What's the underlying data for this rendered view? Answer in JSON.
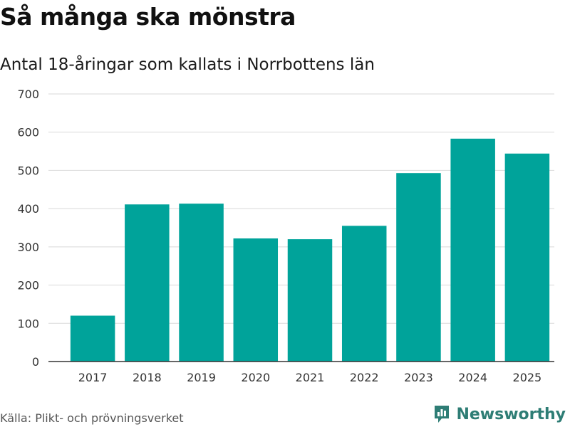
{
  "header": {
    "title": "Så många ska mönstra",
    "subtitle": "Antal 18-åringar som kallats i Norrbottens län"
  },
  "footer": {
    "source": "Källa: Plikt- och prövningsverket",
    "brand": "Newsworthy"
  },
  "colors": {
    "bar": "#00a39a",
    "grid": "#d9d9d9",
    "axis": "#333333",
    "brand": "#2e7d75"
  },
  "chart_data": {
    "type": "bar",
    "categories": [
      "2017",
      "2018",
      "2019",
      "2020",
      "2021",
      "2022",
      "2023",
      "2024",
      "2025"
    ],
    "values": [
      120,
      411,
      413,
      322,
      320,
      355,
      493,
      583,
      544
    ],
    "yticks": [
      0,
      100,
      200,
      300,
      400,
      500,
      600,
      700
    ],
    "ylim": [
      0,
      700
    ],
    "xlabel": "",
    "ylabel": "",
    "grid": true,
    "legend": false
  }
}
